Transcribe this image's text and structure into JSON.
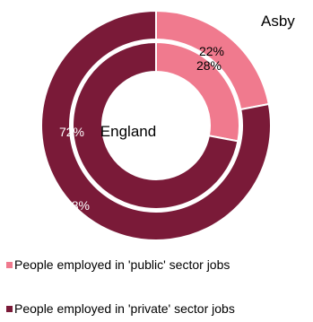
{
  "chart_data": {
    "type": "pie",
    "subtype": "nested-donut",
    "categories": [
      "People employed in 'public' sector jobs",
      "People employed in 'private' sector jobs"
    ],
    "series": [
      {
        "name": "Asby",
        "values": [
          22,
          78
        ],
        "labels": [
          "22%",
          "78%"
        ],
        "ring": "outer"
      },
      {
        "name": "England",
        "values": [
          28,
          72
        ],
        "labels": [
          "28%",
          "72%"
        ],
        "ring": "inner"
      }
    ],
    "colors": [
      "#f07a8e",
      "#7a1a38"
    ],
    "label_colors": {
      "on_light": "#000000",
      "on_dark": "#ffffff"
    },
    "legend": {
      "position": "bottom-left",
      "items": [
        "People employed in 'public' sector jobs",
        "People employed in 'private' sector jobs"
      ]
    }
  }
}
